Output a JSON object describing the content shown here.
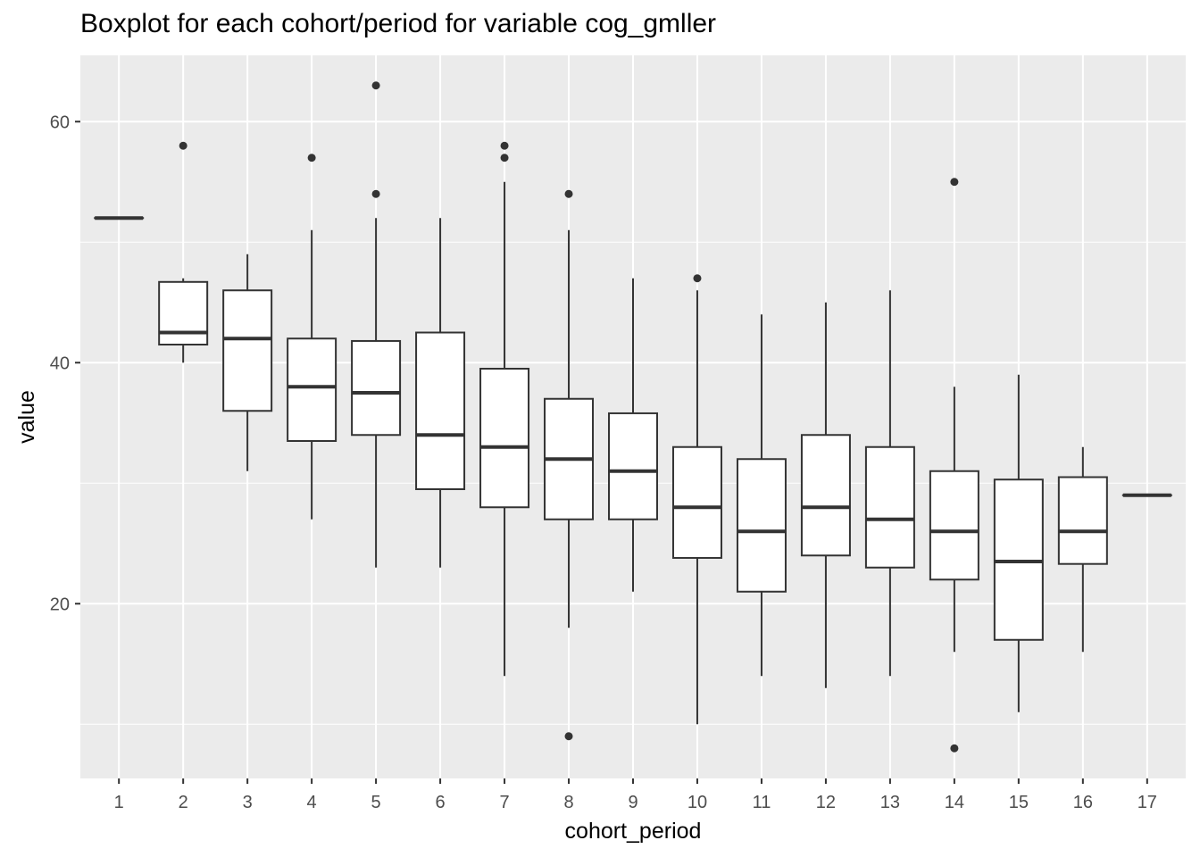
{
  "chart_data": {
    "type": "box",
    "title": "Boxplot for each cohort/period for variable cog_gmller",
    "xlabel": "cohort_period",
    "ylabel": "value",
    "ylim": [
      5.5,
      65.5
    ],
    "y_ticks": [
      20,
      40,
      60
    ],
    "y_minor_ticks": [
      10,
      30,
      50
    ],
    "grid": true,
    "categories": [
      "1",
      "2",
      "3",
      "4",
      "5",
      "6",
      "7",
      "8",
      "9",
      "10",
      "11",
      "12",
      "13",
      "14",
      "15",
      "16",
      "17"
    ],
    "boxes": [
      {
        "category": "1",
        "whisker_low": 52,
        "q1": 52,
        "median": 52,
        "q3": 52,
        "whisker_high": 52,
        "outliers": []
      },
      {
        "category": "2",
        "whisker_low": 40,
        "q1": 41.5,
        "median": 42.5,
        "q3": 46.7,
        "whisker_high": 47,
        "outliers": [
          58
        ]
      },
      {
        "category": "3",
        "whisker_low": 31,
        "q1": 36,
        "median": 42,
        "q3": 46,
        "whisker_high": 49,
        "outliers": []
      },
      {
        "category": "4",
        "whisker_low": 27,
        "q1": 33.5,
        "median": 38,
        "q3": 42,
        "whisker_high": 51,
        "outliers": [
          57
        ]
      },
      {
        "category": "5",
        "whisker_low": 23,
        "q1": 34,
        "median": 37.5,
        "q3": 41.8,
        "whisker_high": 52,
        "outliers": [
          54,
          63
        ]
      },
      {
        "category": "6",
        "whisker_low": 23,
        "q1": 29.5,
        "median": 34,
        "q3": 42.5,
        "whisker_high": 52,
        "outliers": []
      },
      {
        "category": "7",
        "whisker_low": 14,
        "q1": 28,
        "median": 33,
        "q3": 39.5,
        "whisker_high": 55,
        "outliers": [
          57,
          58
        ]
      },
      {
        "category": "8",
        "whisker_low": 18,
        "q1": 27,
        "median": 32,
        "q3": 37,
        "whisker_high": 51,
        "outliers": [
          9,
          54
        ]
      },
      {
        "category": "9",
        "whisker_low": 21,
        "q1": 27,
        "median": 31,
        "q3": 35.8,
        "whisker_high": 47,
        "outliers": []
      },
      {
        "category": "10",
        "whisker_low": 10,
        "q1": 23.8,
        "median": 28,
        "q3": 33,
        "whisker_high": 46,
        "outliers": [
          47
        ]
      },
      {
        "category": "11",
        "whisker_low": 14,
        "q1": 21,
        "median": 26,
        "q3": 32,
        "whisker_high": 44,
        "outliers": []
      },
      {
        "category": "12",
        "whisker_low": 13,
        "q1": 24,
        "median": 28,
        "q3": 34,
        "whisker_high": 45,
        "outliers": []
      },
      {
        "category": "13",
        "whisker_low": 14,
        "q1": 23,
        "median": 27,
        "q3": 33,
        "whisker_high": 46,
        "outliers": []
      },
      {
        "category": "14",
        "whisker_low": 16,
        "q1": 22,
        "median": 26,
        "q3": 31,
        "whisker_high": 38,
        "outliers": [
          8,
          55
        ]
      },
      {
        "category": "15",
        "whisker_low": 11,
        "q1": 17,
        "median": 23.5,
        "q3": 30.3,
        "whisker_high": 39,
        "outliers": []
      },
      {
        "category": "16",
        "whisker_low": 16,
        "q1": 23.3,
        "median": 26,
        "q3": 30.5,
        "whisker_high": 33,
        "outliers": []
      },
      {
        "category": "17",
        "whisker_low": 29,
        "q1": 29,
        "median": 29,
        "q3": 29,
        "whisker_high": 29,
        "outliers": []
      }
    ],
    "colors": {
      "panel_background": "#ebebeb",
      "grid": "#ffffff",
      "box_fill": "#ffffff",
      "box_stroke": "#333333",
      "outlier": "#333333",
      "tick_text": "#4d4d4d",
      "tick_mark": "#333333"
    }
  }
}
